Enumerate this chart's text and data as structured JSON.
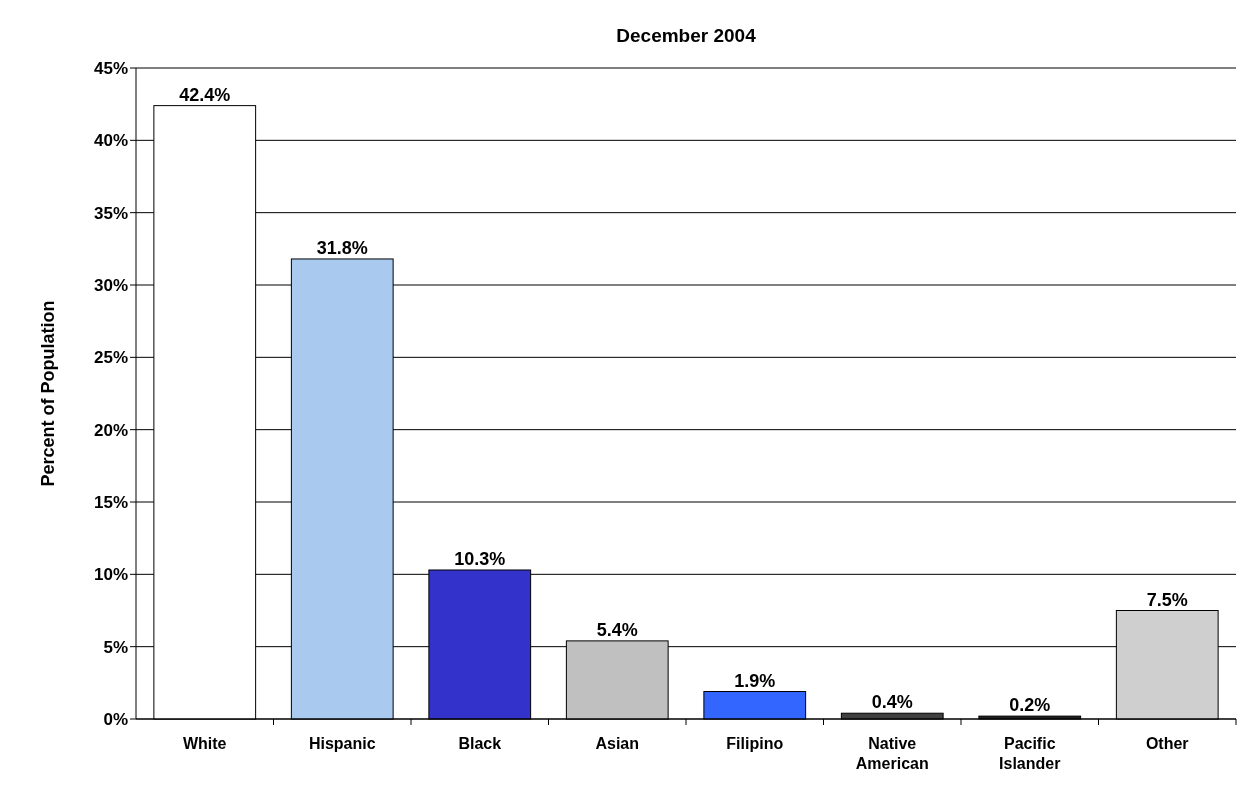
{
  "chart_data": {
    "type": "bar",
    "title": "December 2004",
    "ylabel": "Percent of Population",
    "categories": [
      "White",
      "Hispanic",
      "Black",
      "Asian",
      "Filipino",
      "Native American",
      "Pacific Islander",
      "Other"
    ],
    "values": [
      42.4,
      31.8,
      10.3,
      5.4,
      1.9,
      0.4,
      0.2,
      7.5
    ],
    "colors": [
      "#ffffff",
      "#a9c9ef",
      "#3333cc",
      "#c0c0c0",
      "#3366ff",
      "#404040",
      "#202020",
      "#cfcfcf"
    ],
    "value_labels": [
      "42.4%",
      "31.8%",
      "10.3%",
      "5.4%",
      "1.9%",
      "0.4%",
      "0.2%",
      "7.5%"
    ],
    "ylim": [
      0,
      45
    ],
    "yticks": [
      {
        "value": 0,
        "label": "0%"
      },
      {
        "value": 5,
        "label": "5%"
      },
      {
        "value": 10,
        "label": "10%"
      },
      {
        "value": 15,
        "label": "15%"
      },
      {
        "value": 20,
        "label": "20%"
      },
      {
        "value": 25,
        "label": "25%"
      },
      {
        "value": 30,
        "label": "30%"
      },
      {
        "value": 35,
        "label": "35%"
      },
      {
        "value": 40,
        "label": "40%"
      },
      {
        "value": 45,
        "label": "45%"
      }
    ],
    "grid": "y"
  }
}
